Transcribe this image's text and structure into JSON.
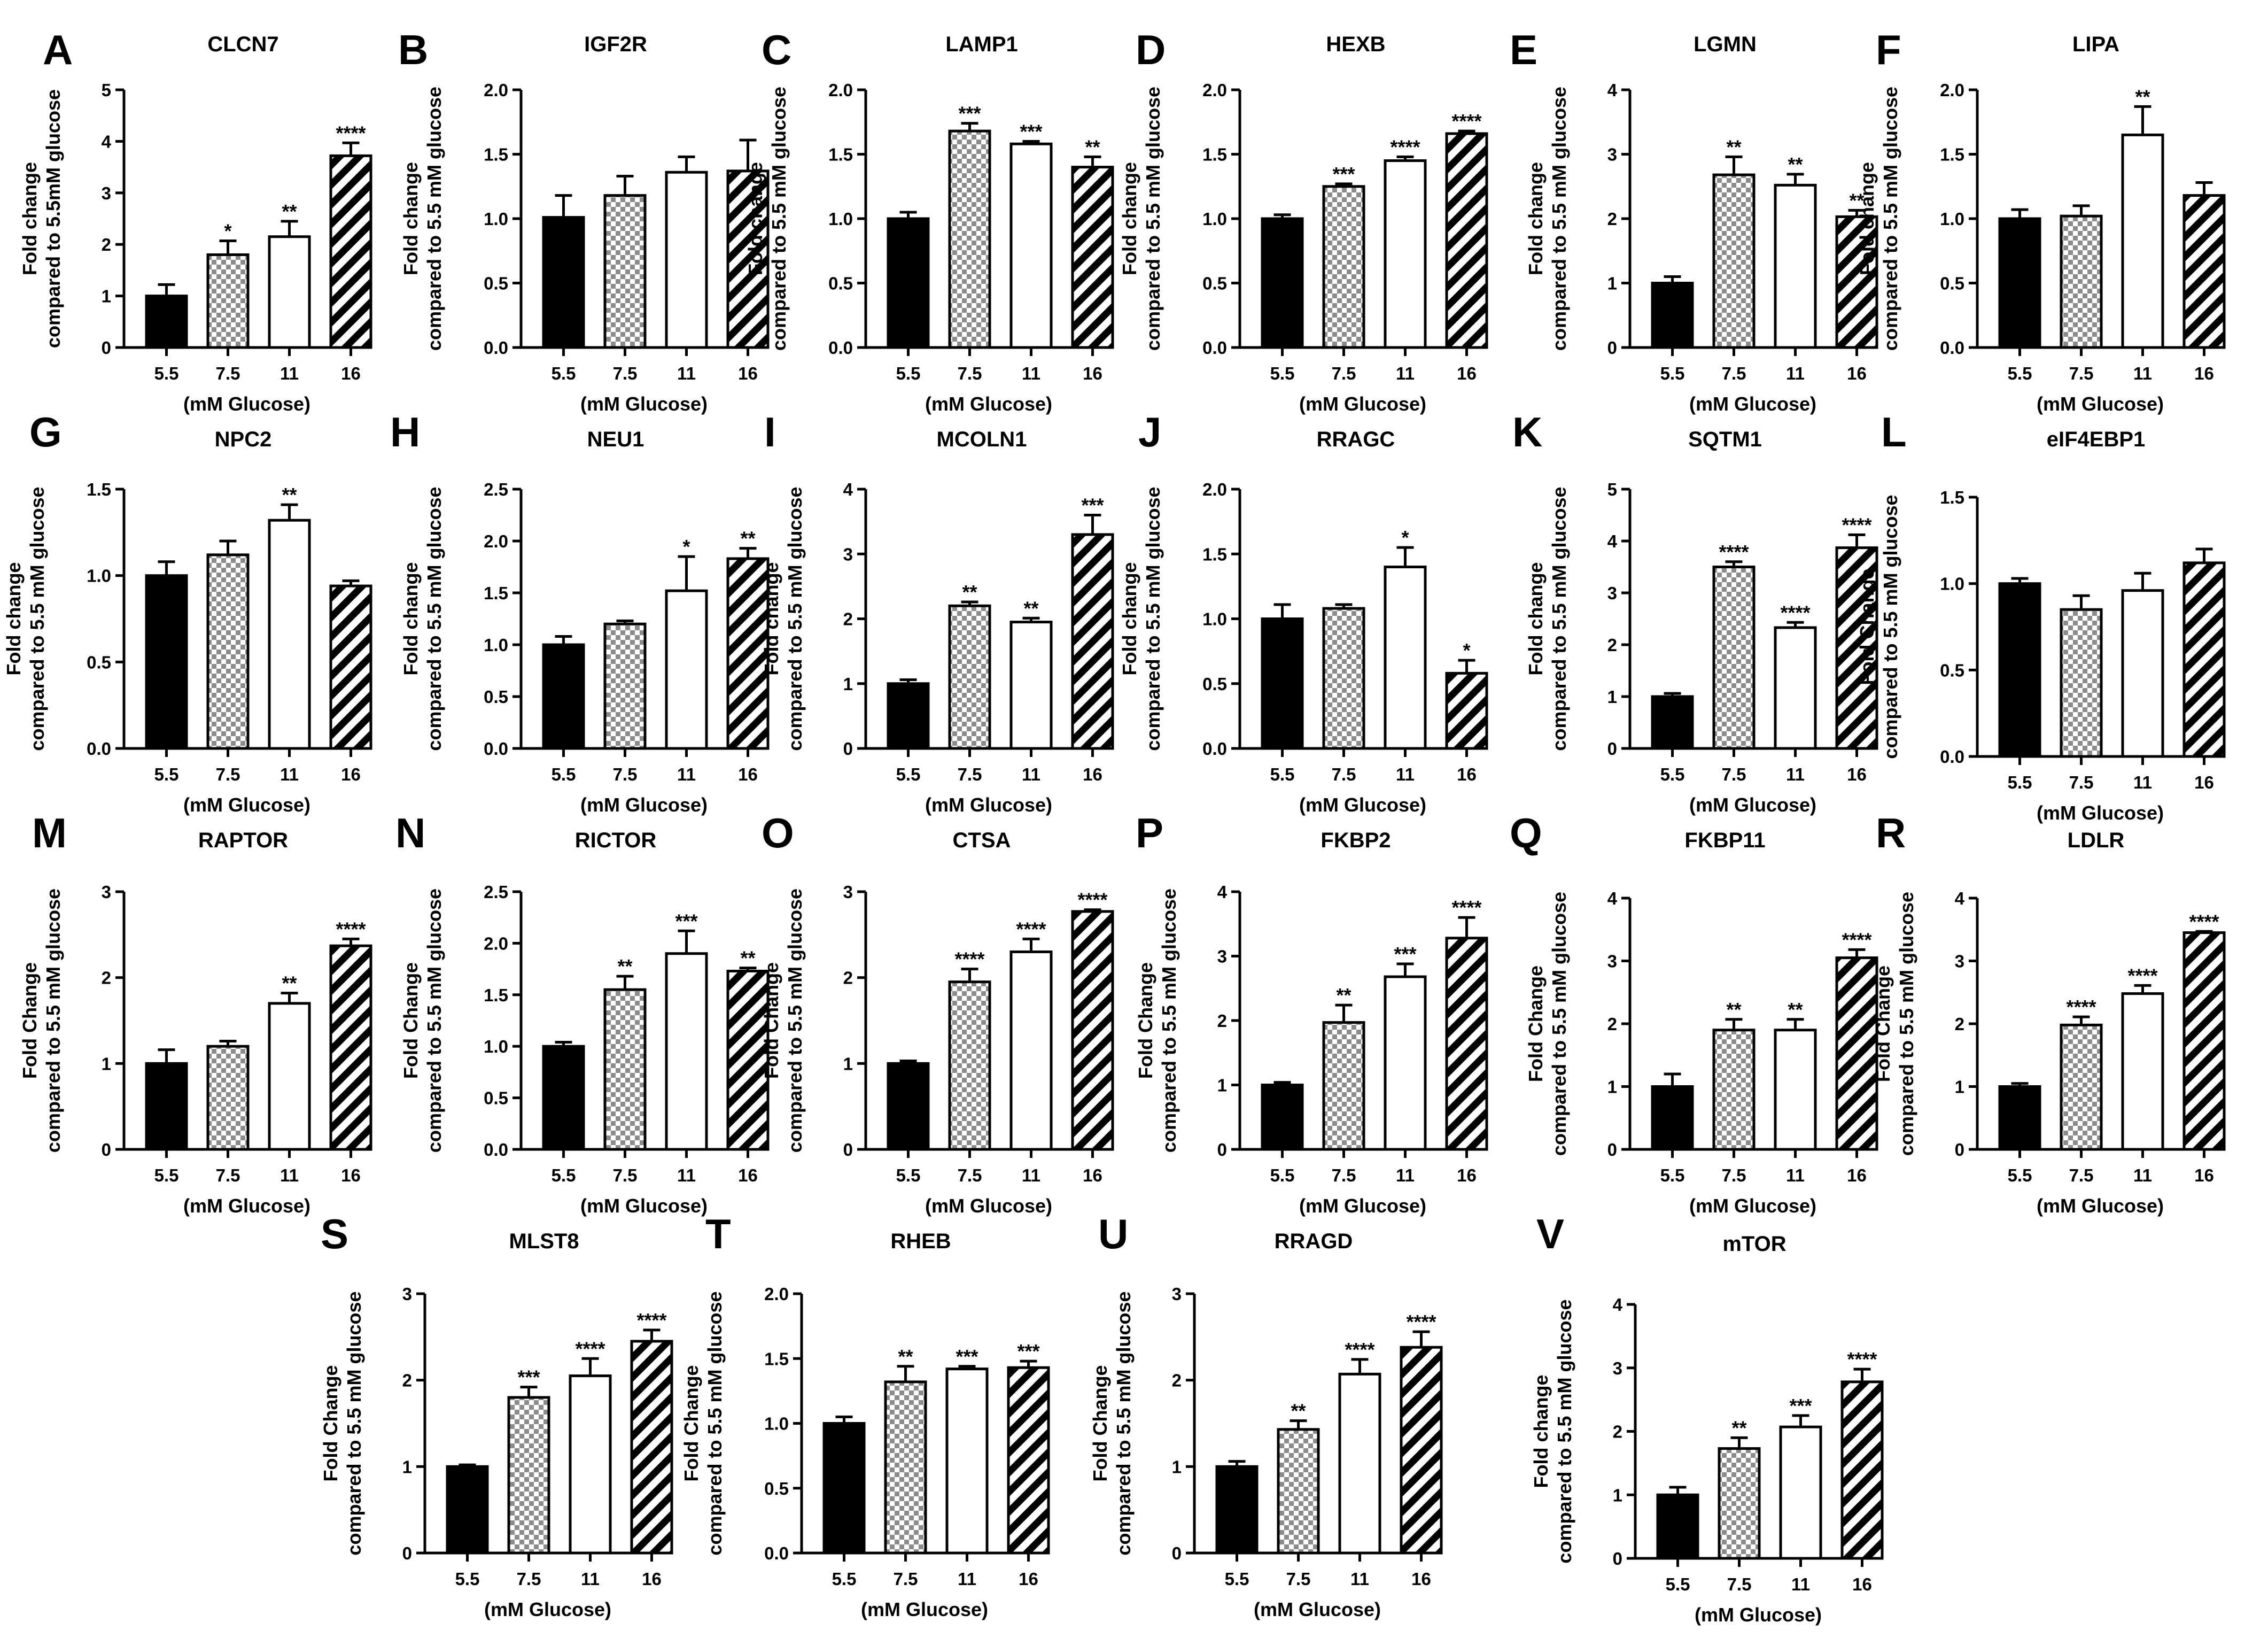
{
  "figure": {
    "xlabel": "(mM Glucose)",
    "categories": [
      "5.5",
      "7.5",
      "11",
      "16"
    ],
    "bar_styles": [
      "solid-black",
      "checker-gray",
      "white",
      "diagonal-hatch"
    ],
    "colors": {
      "ink": "#000000",
      "checker": "#9a9a9a",
      "background": "#ffffff"
    }
  },
  "chart_data": [
    {
      "letter": "A",
      "title": "CLCN7",
      "type": "bar",
      "ylabel": [
        "Fold change",
        "compared to 5.5mM glucose"
      ],
      "ylim": [
        0,
        5
      ],
      "ticks": [
        "0",
        "1",
        "2",
        "3",
        "4",
        "5"
      ],
      "values": [
        1.0,
        1.8,
        2.15,
        3.72
      ],
      "errors": [
        0.22,
        0.27,
        0.3,
        0.25
      ],
      "sig": [
        "",
        "*",
        "**",
        "****"
      ]
    },
    {
      "letter": "B",
      "title": "IGF2R",
      "type": "bar",
      "ylabel": [
        "Fold change",
        "compared to 5.5 mM glucose"
      ],
      "ylim": [
        0,
        2
      ],
      "ticks": [
        "0.0",
        "0.5",
        "1.0",
        "1.5",
        "2.0"
      ],
      "values": [
        1.01,
        1.18,
        1.36,
        1.37
      ],
      "errors": [
        0.17,
        0.15,
        0.12,
        0.24
      ],
      "sig": [
        "",
        "",
        "",
        ""
      ]
    },
    {
      "letter": "C",
      "title": "LAMP1",
      "type": "bar",
      "ylabel": [
        "Fold change",
        "compared to 5.5 mM glucose"
      ],
      "ylim": [
        0,
        2
      ],
      "ticks": [
        "0.0",
        "0.5",
        "1.0",
        "1.5",
        "2.0"
      ],
      "values": [
        1.0,
        1.68,
        1.58,
        1.4
      ],
      "errors": [
        0.05,
        0.06,
        0.02,
        0.08
      ],
      "sig": [
        "",
        "***",
        "***",
        "**"
      ]
    },
    {
      "letter": "D",
      "title": "HEXB",
      "type": "bar",
      "ylabel": [
        "Fold change",
        "compared to 5.5 mM glucose"
      ],
      "ylim": [
        0,
        2
      ],
      "ticks": [
        "0.0",
        "0.5",
        "1.0",
        "1.5",
        "2.0"
      ],
      "values": [
        1.0,
        1.25,
        1.45,
        1.66
      ],
      "errors": [
        0.03,
        0.02,
        0.03,
        0.02
      ],
      "sig": [
        "",
        "***",
        "****",
        "****"
      ]
    },
    {
      "letter": "E",
      "title": "LGMN",
      "type": "bar",
      "ylabel": [
        "Fold change",
        "compared to 5.5 mM glucose"
      ],
      "ylim": [
        0,
        4
      ],
      "ticks": [
        "0",
        "1",
        "2",
        "3",
        "4"
      ],
      "values": [
        1.0,
        2.68,
        2.52,
        2.03
      ],
      "errors": [
        0.1,
        0.28,
        0.17,
        0.1
      ],
      "sig": [
        "",
        "**",
        "**",
        "**"
      ]
    },
    {
      "letter": "F",
      "title": "LIPA",
      "type": "bar",
      "ylabel": [
        "Fold change",
        "compared to 5.5 mM glucose"
      ],
      "ylim": [
        0,
        2
      ],
      "ticks": [
        "0.0",
        "0.5",
        "1.0",
        "1.5",
        "2.0"
      ],
      "values": [
        1.0,
        1.02,
        1.65,
        1.18
      ],
      "errors": [
        0.07,
        0.08,
        0.22,
        0.1
      ],
      "sig": [
        "",
        "",
        "**",
        ""
      ]
    },
    {
      "letter": "G",
      "title": "NPC2",
      "type": "bar",
      "ylabel": [
        "Fold change",
        "compared to 5.5 mM glucose"
      ],
      "ylim": [
        0,
        1.5
      ],
      "ticks": [
        "0.0",
        "0.5",
        "1.0",
        "1.5"
      ],
      "values": [
        1.0,
        1.12,
        1.32,
        0.94
      ],
      "errors": [
        0.08,
        0.08,
        0.09,
        0.03
      ],
      "sig": [
        "",
        "",
        "**",
        ""
      ]
    },
    {
      "letter": "H",
      "title": "NEU1",
      "type": "bar",
      "ylabel": [
        "Fold change",
        "compared to 5.5 mM glucose"
      ],
      "ylim": [
        0,
        2.5
      ],
      "ticks": [
        "0.0",
        "0.5",
        "1.0",
        "1.5",
        "2.0",
        "2.5"
      ],
      "values": [
        1.0,
        1.2,
        1.52,
        1.83
      ],
      "errors": [
        0.08,
        0.03,
        0.33,
        0.1
      ],
      "sig": [
        "",
        "",
        "*",
        "**"
      ]
    },
    {
      "letter": "I",
      "title": "MCOLN1",
      "type": "bar",
      "ylabel": [
        "Fold change",
        "compared to 5.5 mM glucose"
      ],
      "ylim": [
        0,
        4
      ],
      "ticks": [
        "0",
        "1",
        "2",
        "3",
        "4"
      ],
      "values": [
        1.0,
        2.2,
        1.95,
        3.3
      ],
      "errors": [
        0.06,
        0.06,
        0.06,
        0.3
      ],
      "sig": [
        "",
        "**",
        "**",
        "***"
      ]
    },
    {
      "letter": "J",
      "title": "RRAGC",
      "type": "bar",
      "ylabel": [
        "Fold change",
        "compared to 5.5 mM glucose"
      ],
      "ylim": [
        0,
        2
      ],
      "ticks": [
        "0.0",
        "0.5",
        "1.0",
        "1.5",
        "2.0"
      ],
      "values": [
        1.0,
        1.08,
        1.4,
        0.58
      ],
      "errors": [
        0.11,
        0.03,
        0.15,
        0.1
      ],
      "sig": [
        "",
        "",
        "*",
        "*"
      ]
    },
    {
      "letter": "K",
      "title": "SQTM1",
      "type": "bar",
      "ylabel": [
        "Fold change",
        "compared to 5.5 mM glucose"
      ],
      "ylim": [
        0,
        5
      ],
      "ticks": [
        "0",
        "1",
        "2",
        "3",
        "4",
        "5"
      ],
      "values": [
        1.0,
        3.5,
        2.33,
        3.87
      ],
      "errors": [
        0.06,
        0.1,
        0.1,
        0.25
      ],
      "sig": [
        "",
        "****",
        "****",
        "****"
      ]
    },
    {
      "letter": "L",
      "title": "eIF4EBP1",
      "type": "bar",
      "ylabel": [
        "Fold Change",
        "compared to 5.5 mM glucose"
      ],
      "ylim": [
        0,
        1.5
      ],
      "ticks": [
        "0.0",
        "0.5",
        "1.0",
        "1.5"
      ],
      "values": [
        1.0,
        0.85,
        0.96,
        1.12
      ],
      "errors": [
        0.03,
        0.08,
        0.1,
        0.08
      ],
      "sig": [
        "",
        "",
        "",
        ""
      ]
    },
    {
      "letter": "M",
      "title": "RAPTOR",
      "type": "bar",
      "ylabel": [
        "Fold Change",
        "compared to 5.5 mM glucose"
      ],
      "ylim": [
        0,
        3
      ],
      "ticks": [
        "0",
        "1",
        "2",
        "3"
      ],
      "values": [
        1.0,
        1.2,
        1.7,
        2.37
      ],
      "errors": [
        0.16,
        0.06,
        0.12,
        0.08
      ],
      "sig": [
        "",
        "",
        "**",
        "****"
      ]
    },
    {
      "letter": "N",
      "title": "RICTOR",
      "type": "bar",
      "ylabel": [
        "Fold Change",
        "compared to 5.5 mM glucose"
      ],
      "ylim": [
        0,
        2.5
      ],
      "ticks": [
        "0.0",
        "0.5",
        "1.0",
        "1.5",
        "2.0",
        "2.5"
      ],
      "values": [
        1.0,
        1.55,
        1.9,
        1.73
      ],
      "errors": [
        0.04,
        0.13,
        0.22,
        0.03
      ],
      "sig": [
        "",
        "**",
        "***",
        "**"
      ]
    },
    {
      "letter": "O",
      "title": "CTSA",
      "type": "bar",
      "ylabel": [
        "Fold Change",
        "compared to 5.5 mM glucose"
      ],
      "ylim": [
        0,
        3
      ],
      "ticks": [
        "0",
        "1",
        "2",
        "3"
      ],
      "values": [
        1.0,
        1.95,
        2.3,
        2.77
      ],
      "errors": [
        0.03,
        0.15,
        0.15,
        0.02
      ],
      "sig": [
        "",
        "****",
        "****",
        "****"
      ]
    },
    {
      "letter": "P",
      "title": "FKBP2",
      "type": "bar",
      "ylabel": [
        "Fold Change",
        "compared to 5.5 mM glucose"
      ],
      "ylim": [
        0,
        4
      ],
      "ticks": [
        "0",
        "1",
        "2",
        "3",
        "4"
      ],
      "values": [
        1.0,
        1.97,
        2.68,
        3.28
      ],
      "errors": [
        0.04,
        0.27,
        0.2,
        0.32
      ],
      "sig": [
        "",
        "**",
        "***",
        "****"
      ]
    },
    {
      "letter": "Q",
      "title": "FKBP11",
      "type": "bar",
      "ylabel": [
        "Fold Change",
        "compared to 5.5 mM glucose"
      ],
      "ylim": [
        0,
        4
      ],
      "ticks": [
        "0",
        "1",
        "2",
        "3",
        "4"
      ],
      "values": [
        1.0,
        1.9,
        1.9,
        3.05
      ],
      "errors": [
        0.2,
        0.17,
        0.17,
        0.13
      ],
      "sig": [
        "",
        "**",
        "**",
        "****"
      ]
    },
    {
      "letter": "R",
      "title": "LDLR",
      "type": "bar",
      "ylabel": [
        "Fold Change",
        "compared to 5.5 mM glucose"
      ],
      "ylim": [
        0,
        4
      ],
      "ticks": [
        "0",
        "1",
        "2",
        "3",
        "4"
      ],
      "values": [
        1.0,
        1.98,
        2.48,
        3.45
      ],
      "errors": [
        0.05,
        0.13,
        0.13,
        0.02
      ],
      "sig": [
        "",
        "****",
        "****",
        "****"
      ]
    },
    {
      "letter": "S",
      "title": "MLST8",
      "type": "bar",
      "ylabel": [
        "Fold Change",
        "compared to 5.5 mM glucose"
      ],
      "ylim": [
        0,
        3
      ],
      "ticks": [
        "0",
        "1",
        "2",
        "3"
      ],
      "values": [
        1.0,
        1.8,
        2.05,
        2.45
      ],
      "errors": [
        0.02,
        0.12,
        0.2,
        0.13
      ],
      "sig": [
        "",
        "***",
        "****",
        "****"
      ]
    },
    {
      "letter": "T",
      "title": "RHEB",
      "type": "bar",
      "ylabel": [
        "Fold Change",
        "compared to 5.5 mM glucose"
      ],
      "ylim": [
        0,
        2
      ],
      "ticks": [
        "0.0",
        "0.5",
        "1.0",
        "1.5",
        "2.0"
      ],
      "values": [
        1.0,
        1.32,
        1.42,
        1.43
      ],
      "errors": [
        0.05,
        0.12,
        0.02,
        0.05
      ],
      "sig": [
        "",
        "**",
        "***",
        "***"
      ]
    },
    {
      "letter": "U",
      "title": "RRAGD",
      "type": "bar",
      "ylabel": [
        "Fold Change",
        "compared to 5.5 mM glucose"
      ],
      "ylim": [
        0,
        3
      ],
      "ticks": [
        "0",
        "1",
        "2",
        "3"
      ],
      "values": [
        1.0,
        1.43,
        2.07,
        2.38
      ],
      "errors": [
        0.06,
        0.1,
        0.17,
        0.18
      ],
      "sig": [
        "",
        "**",
        "****",
        "****"
      ]
    },
    {
      "letter": "V",
      "title": "mTOR",
      "type": "bar",
      "ylabel": [
        "Fold change",
        "compared to 5.5 mM glucose"
      ],
      "ylim": [
        0,
        4
      ],
      "ticks": [
        "0",
        "1",
        "2",
        "3",
        "4"
      ],
      "values": [
        1.0,
        1.73,
        2.07,
        2.78
      ],
      "errors": [
        0.12,
        0.17,
        0.18,
        0.2
      ],
      "sig": [
        "",
        "**",
        "***",
        "****"
      ]
    }
  ]
}
